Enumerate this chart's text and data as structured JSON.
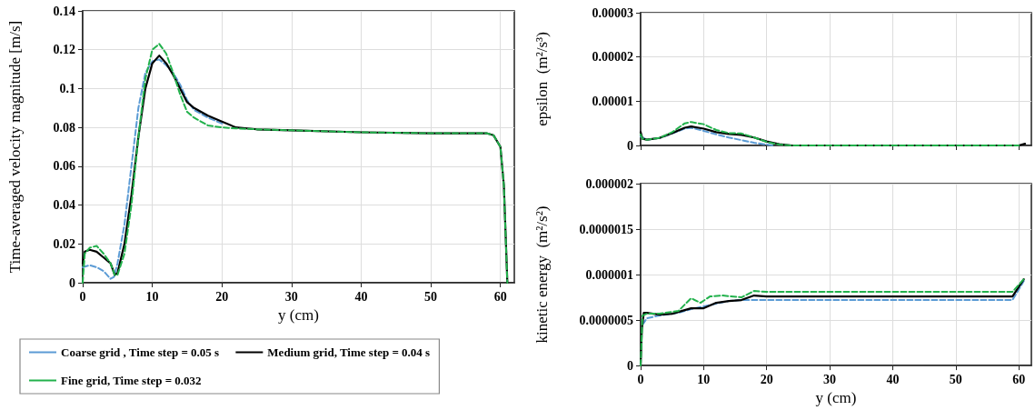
{
  "chart_data": [
    {
      "type": "line",
      "xlabel": "y (cm)",
      "ylabel": "Time-averaged velocity magnitude [m/s]",
      "xlim": [
        0,
        62
      ],
      "xticks": [
        0,
        10,
        20,
        30,
        40,
        50,
        60
      ],
      "ylim": [
        0,
        0.14
      ],
      "yticks": [
        0,
        0.02,
        0.04,
        0.06,
        0.08,
        0.1,
        0.12,
        0.14
      ],
      "grid": true,
      "legend": "bottom",
      "marker": "none",
      "series": [
        {
          "name": "Coarse grid , Time step = 0.05 s",
          "color": "#5b9bd5",
          "line_style": "dashed",
          "x": [
            0,
            1,
            2,
            3,
            4,
            4.5,
            5,
            6,
            7,
            8,
            9,
            10,
            11,
            12,
            13,
            14,
            15,
            16,
            18,
            20
          ],
          "values": [
            0.008,
            0.009,
            0.008,
            0.006,
            0.002,
            0.003,
            0.01,
            0.03,
            0.06,
            0.09,
            0.108,
            0.114,
            0.115,
            0.112,
            0.108,
            0.102,
            0.094,
            0.089,
            0.085,
            0.082
          ]
        },
        {
          "name": "Medium grid, Time step = 0.04 s",
          "color": "#000000",
          "line_style": "solid",
          "x": [
            0,
            0.3,
            1,
            2,
            3,
            4,
            4.6,
            5,
            6,
            7,
            8,
            9,
            10,
            11,
            12,
            13,
            14,
            15,
            16,
            18,
            20,
            22,
            25,
            30,
            40,
            50,
            58,
            59,
            60,
            60.5,
            61
          ],
          "values": [
            0.01,
            0.016,
            0.017,
            0.016,
            0.013,
            0.01,
            0.004,
            0.005,
            0.02,
            0.045,
            0.075,
            0.1,
            0.113,
            0.117,
            0.113,
            0.107,
            0.1,
            0.093,
            0.09,
            0.086,
            0.083,
            0.08,
            0.079,
            0.0785,
            0.0775,
            0.077,
            0.077,
            0.076,
            0.07,
            0.05,
            0
          ]
        },
        {
          "name": "Fine grid, Time step = 0.032",
          "color": "#22b14c",
          "line_style": "dashed",
          "x": [
            0,
            0.3,
            1,
            2,
            3,
            4,
            4.6,
            5,
            6,
            7,
            8,
            9,
            10,
            11,
            12,
            13,
            14,
            15,
            16,
            18,
            20,
            22,
            25,
            30,
            40,
            50,
            58,
            59,
            60,
            60.5,
            61
          ],
          "values": [
            0,
            0.015,
            0.018,
            0.019,
            0.015,
            0.01,
            0.004,
            0.004,
            0.015,
            0.04,
            0.075,
            0.105,
            0.12,
            0.123,
            0.118,
            0.108,
            0.097,
            0.088,
            0.085,
            0.081,
            0.08,
            0.0795,
            0.079,
            0.0785,
            0.0775,
            0.077,
            0.077,
            0.076,
            0.07,
            0.05,
            0
          ]
        }
      ]
    },
    {
      "type": "line",
      "ylabel": "epsilon  (m²/s³)",
      "xlim": [
        0,
        62
      ],
      "xticks": [
        0,
        10,
        20,
        30,
        40,
        50,
        60
      ],
      "ylim": [
        0,
        3e-05
      ],
      "yticks": [
        0,
        {
          "value": 1e-05,
          "label": "0.00001"
        },
        {
          "value": 2e-05,
          "label": "0.00002"
        },
        {
          "value": 3e-05,
          "label": "0.00003"
        }
      ],
      "grid": true,
      "tick_labels": "y",
      "marker": "none",
      "series": [
        {
          "color": "#5b9bd5",
          "line_style": "dashed",
          "x": [
            0,
            1,
            3,
            5,
            7,
            8,
            10,
            12,
            14,
            16,
            18,
            20,
            21
          ],
          "values": [
            2e-06,
            1.3e-06,
            1.7e-06,
            2.7e-06,
            3.8e-06,
            4e-06,
            3.3e-06,
            2.5e-06,
            1.8e-06,
            1.2e-06,
            6e-07,
            2e-07,
            0
          ]
        },
        {
          "color": "#000000",
          "line_style": "solid",
          "x": [
            0,
            0.3,
            1,
            3,
            5,
            7,
            8,
            10,
            12,
            14,
            16,
            18,
            20,
            22,
            24,
            40,
            60,
            61
          ],
          "values": [
            3e-06,
            1.5e-06,
            1.3e-06,
            1.7e-06,
            2.8e-06,
            4e-06,
            4.3e-06,
            3.8e-06,
            3e-06,
            2.6e-06,
            2.4e-06,
            1.8e-06,
            9e-07,
            3e-07,
            0,
            0,
            0,
            4e-07
          ]
        },
        {
          "color": "#22b14c",
          "line_style": "dashed",
          "x": [
            0,
            0.3,
            1,
            3,
            5,
            7,
            8,
            10,
            12,
            14,
            16,
            18,
            20,
            22,
            24,
            40,
            60
          ],
          "values": [
            2.5e-06,
            1.5e-06,
            1.3e-06,
            1.7e-06,
            3e-06,
            5e-06,
            5.3e-06,
            4.8e-06,
            3.5e-06,
            2.8e-06,
            2.7e-06,
            1.8e-06,
            8e-07,
            2e-07,
            0,
            0,
            0
          ]
        }
      ]
    },
    {
      "type": "line",
      "xlabel": "y (cm)",
      "ylabel": "kinetic energy  (m²/s²)",
      "xlim": [
        0,
        62
      ],
      "xticks": [
        0,
        10,
        20,
        30,
        40,
        50,
        60
      ],
      "ylim": [
        0,
        2e-06
      ],
      "yticks": [
        0,
        {
          "value": 5e-07,
          "label": "0.0000005"
        },
        {
          "value": 1e-06,
          "label": "0.000001"
        },
        {
          "value": 1.5e-06,
          "label": "0.0000015"
        },
        {
          "value": 2e-06,
          "label": "0.000002"
        }
      ],
      "grid": true,
      "marker": "none",
      "series": [
        {
          "color": "#5b9bd5",
          "line_style": "dashed",
          "x": [
            0.3,
            1,
            3,
            6,
            8,
            10,
            12,
            14,
            16,
            18,
            30,
            59,
            60.8
          ],
          "values": [
            4.5e-07,
            5.2e-07,
            5.5e-07,
            5.8e-07,
            6.2e-07,
            6.5e-07,
            6.8e-07,
            7.1e-07,
            7.2e-07,
            7.2e-07,
            7.2e-07,
            7.2e-07,
            9.3e-07
          ]
        },
        {
          "color": "#000000",
          "line_style": "solid",
          "x": [
            0,
            0.2,
            0.5,
            1,
            3,
            5,
            7,
            8,
            10,
            12,
            14,
            16,
            18,
            20,
            30,
            59,
            60.8
          ],
          "values": [
            0,
            4e-07,
            5.8e-07,
            5.8e-07,
            5.6e-07,
            5.7e-07,
            6.1e-07,
            6.3e-07,
            6.3e-07,
            6.9e-07,
            7.1e-07,
            7.2e-07,
            7.7e-07,
            7.6e-07,
            7.6e-07,
            7.6e-07,
            9.5e-07
          ]
        },
        {
          "color": "#22b14c",
          "line_style": "dashed",
          "x": [
            0,
            0.3,
            1,
            3,
            6,
            8,
            9.5,
            11,
            13,
            16,
            18,
            20,
            30,
            59,
            60.8
          ],
          "values": [
            0,
            5.5e-07,
            5.7e-07,
            5.7e-07,
            6e-07,
            7.4e-07,
            6.9e-07,
            7.6e-07,
            7.7e-07,
            7.5e-07,
            8.2e-07,
            8.1e-07,
            8.1e-07,
            8.1e-07,
            9.5e-07
          ]
        }
      ]
    }
  ]
}
